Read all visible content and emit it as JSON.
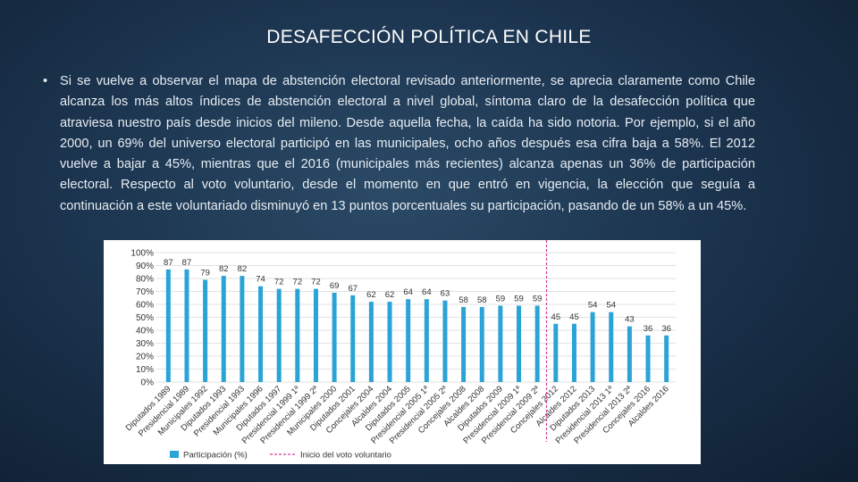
{
  "slide": {
    "title": "DESAFECCIÓN POLÍTICA EN CHILE",
    "bullet_char": "•",
    "body": "Si se vuelve a observar el mapa de abstención electoral revisado anteriormente, se aprecia claramente como Chile alcanza los más altos índices de abstención electoral a nivel global, síntoma claro de la desafección política que atraviesa nuestro país desde inicios del mileno. Desde aquella fecha, la caída ha sido notoria. Por ejemplo, si el año 2000, un 69% del universo electoral participó en las municipales, ocho años después esa cifra baja a 58%. El 2012 vuelve a bajar a 45%, mientras que el 2016 (municipales más recientes) alcanza apenas un 36% de participación electoral. Respecto al voto voluntario, desde el momento en que entró en vigencia, la elección que seguía a continuación a este voluntariado disminuyó en 13 puntos porcentuales su participación, pasando de un 58% a un 45%."
  },
  "chart_data": {
    "type": "bar",
    "categories": [
      "Diputados 1989",
      "Presidencial 1989",
      "Municipales 1992",
      "Diputados 1993",
      "Presidencial 1993",
      "Municipales 1996",
      "Diputados 1997",
      "Presidencial 1999 1ª",
      "Presidencial 1999 2ª",
      "Municipales 2000",
      "Diputados 2001",
      "Concejales 2004",
      "Alcaldes 2004",
      "Diputados 2005",
      "Presidencial 2005 1ª",
      "Presidencial 2005 2ª",
      "Concejales 2008",
      "Alcaldes 2008",
      "Diputados 2009",
      "Presidencial 2009 1ª",
      "Presidencial 2009 2ª",
      "Concejales 2012",
      "Alcaldes 2012",
      "Diputados 2013",
      "Presidencial 2013 1ª",
      "Presidencial 2013 2ª",
      "Concejales 2016",
      "Alcaldes 2016"
    ],
    "series": [
      {
        "name": "Participación (%)",
        "values": [
          87,
          87,
          79,
          82,
          82,
          74,
          72,
          72,
          72,
          69,
          67,
          62,
          62,
          64,
          64,
          63,
          58,
          58,
          59,
          59,
          59,
          45,
          45,
          54,
          54,
          43,
          36,
          36
        ],
        "color": "#2aa3d6"
      }
    ],
    "y_ticks": [
      "0%",
      "10%",
      "20%",
      "30%",
      "40%",
      "50%",
      "60%",
      "70%",
      "80%",
      "90%",
      "100%"
    ],
    "ylim": [
      0,
      100
    ],
    "grid": true,
    "voluntary_vote_start": "Presidencial 2009 2ª",
    "legend": {
      "position": "bottom-left",
      "items": [
        {
          "label": "Participación (%)",
          "kind": "bar",
          "color": "#2aa3d6"
        },
        {
          "label": "Inicio del voto voluntario",
          "kind": "dashed-line",
          "color": "#d63c9a"
        }
      ]
    }
  }
}
